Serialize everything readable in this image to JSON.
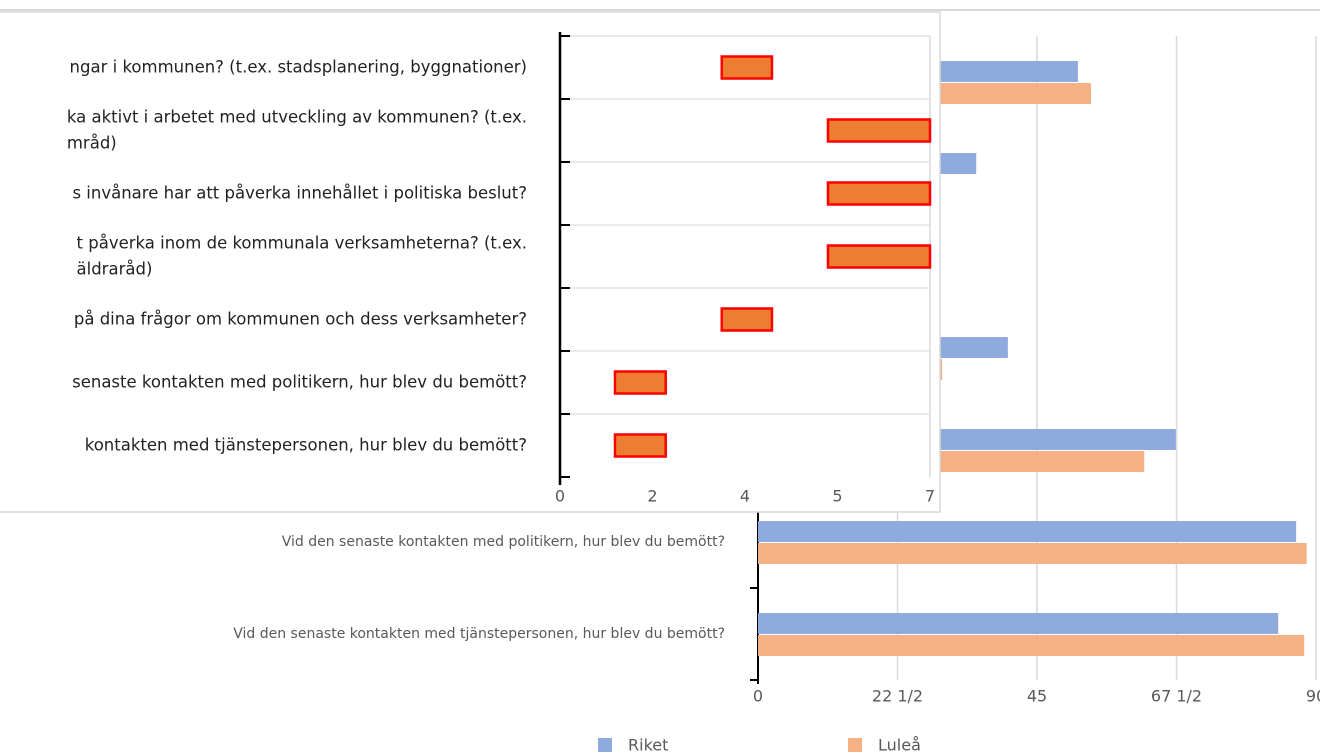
{
  "chart_data": [
    {
      "type": "hbar",
      "categories": [
        null,
        null,
        null,
        null,
        null,
        "Vid den senaste kontakten med politikern, hur blev du bemött?",
        "Vid den senaste kontakten med tjänstepersonen, hur blev du bemött?"
      ],
      "series": [
        {
          "name": "Riket",
          "color": "#8faadc",
          "values": [
            51.6,
            35.2,
            null,
            40.3,
            67.4,
            86.8,
            83.9
          ]
        },
        {
          "name": "Luleå",
          "color": "#f4b183",
          "values": [
            53.7,
            null,
            null,
            29.7,
            62.3,
            88.5,
            88.1
          ]
        }
      ],
      "xlim": [
        0,
        90
      ],
      "xticks": [
        0,
        {
          "value": 22.5,
          "label": "22 1/2"
        },
        45,
        {
          "value": 67.5,
          "label": "67 1/2"
        },
        90
      ],
      "grid": true,
      "legend": "bottom"
    },
    {
      "type": "floating-bar",
      "categories": [
        "ngar i kommunen? (t.ex. stadsplanering, byggnationer)",
        "ka aktivt i arbetet med utveckling av kommunen? (t.ex.\nmråd)",
        "s invånare har att påverka innehållet i politiska beslut?",
        "t påverka inom de kommunala verksamheterna? (t.ex.\näldraråd)",
        "på dina frågor om kommunen och dess verksamheter?",
        "senaste kontakten med politikern, hur blev du bemött?",
        " kontakten med tjänstepersonen, hur blev du bemött?"
      ],
      "values": [
        [
          3.06,
          4.01
        ],
        [
          5.07,
          7
        ],
        [
          5.07,
          7
        ],
        [
          5.07,
          7
        ],
        [
          3.06,
          4.01
        ],
        [
          1.04,
          2.0
        ],
        [
          1.04,
          2.0
        ]
      ],
      "color": "#ed7d31",
      "border_color": "#ff0000",
      "xlim": [
        0,
        7
      ],
      "xticks": [
        0,
        {
          "value": 1.75,
          "label": "2"
        },
        {
          "value": 3.5,
          "label": "4"
        },
        {
          "value": 5.25,
          "label": "5"
        },
        7
      ],
      "grid": true
    }
  ]
}
